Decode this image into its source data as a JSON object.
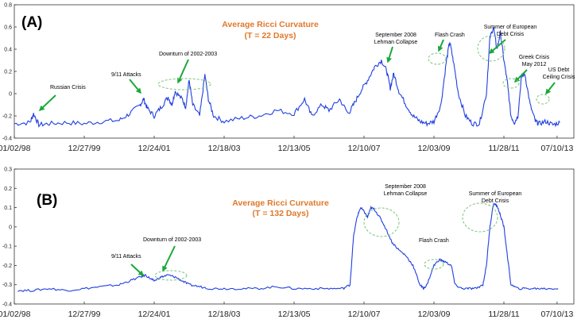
{
  "chart_data": [
    {
      "type": "line",
      "panel_label": "(A)",
      "title_line1": "Average Ricci Curvature",
      "title_line2": "(T = 22 Days)",
      "ylim": [
        -0.4,
        0.8
      ],
      "yticks": [
        -0.4,
        -0.2,
        0,
        0.2,
        0.4,
        0.6,
        0.8
      ],
      "ytick_labels": [
        "-0.4",
        "-0.2",
        "0",
        "0.2",
        "0.4",
        "0.6",
        "0.8"
      ],
      "x_range": [
        1998.0,
        2014.0
      ],
      "x_tick_labels": [
        "01/02/98",
        "12/27/99",
        "12/24/01",
        "12/18/03",
        "12/13/05",
        "12/10/07",
        "12/03/09",
        "11/28/11",
        "07/10/13"
      ],
      "x_tick_positions": [
        1998.0,
        2000.0,
        2002.0,
        2004.0,
        2006.0,
        2008.0,
        2010.0,
        2012.0,
        2013.52
      ],
      "line_color": "#1f3fe0",
      "series": {
        "name": "Average Ricci Curvature (T = 22 Days)",
        "x": [
          1998.0,
          1998.45,
          1998.55,
          1998.7,
          1999.0,
          1999.5,
          2000.0,
          2000.5,
          2001.0,
          2001.3,
          2001.6,
          2001.7,
          2001.8,
          2002.0,
          2002.2,
          2002.4,
          2002.5,
          2002.6,
          2002.8,
          2002.9,
          2003.0,
          2003.1,
          2003.3,
          2003.45,
          2003.55,
          2003.7,
          2004.0,
          2004.5,
          2005.0,
          2005.5,
          2006.0,
          2006.3,
          2006.5,
          2006.8,
          2007.0,
          2007.3,
          2007.55,
          2007.7,
          2007.9,
          2008.1,
          2008.3,
          2008.5,
          2008.65,
          2008.75,
          2008.85,
          2009.0,
          2009.2,
          2009.4,
          2009.6,
          2009.8,
          2010.0,
          2010.2,
          2010.35,
          2010.45,
          2010.55,
          2010.7,
          2010.9,
          2011.1,
          2011.3,
          2011.5,
          2011.6,
          2011.7,
          2011.8,
          2011.9,
          2012.0,
          2012.1,
          2012.2,
          2012.3,
          2012.4,
          2012.5,
          2012.6,
          2012.75,
          2012.9,
          2013.0,
          2013.2,
          2013.4,
          2013.6
        ],
        "values": [
          -0.27,
          -0.26,
          -0.18,
          -0.28,
          -0.27,
          -0.26,
          -0.27,
          -0.25,
          -0.24,
          -0.18,
          -0.1,
          -0.05,
          -0.13,
          -0.2,
          -0.12,
          -0.03,
          -0.1,
          0.02,
          -0.05,
          -0.12,
          0.12,
          -0.1,
          -0.2,
          0.17,
          -0.05,
          -0.2,
          -0.25,
          -0.22,
          -0.2,
          -0.15,
          -0.18,
          -0.05,
          -0.2,
          -0.1,
          -0.15,
          -0.05,
          -0.18,
          -0.1,
          0.02,
          0.12,
          0.24,
          0.3,
          0.2,
          0.05,
          0.18,
          0.02,
          -0.1,
          -0.2,
          -0.25,
          -0.27,
          -0.25,
          -0.1,
          0.28,
          0.47,
          0.3,
          0.0,
          -0.2,
          -0.27,
          -0.27,
          0.0,
          0.5,
          0.6,
          0.4,
          0.55,
          0.3,
          0.1,
          -0.2,
          -0.26,
          -0.2,
          0.15,
          0.18,
          -0.1,
          -0.25,
          -0.27,
          -0.25,
          -0.28,
          -0.26
        ]
      },
      "annotations": [
        {
          "text": "Russian Crisis"
        },
        {
          "text": "9/11 Attacks"
        },
        {
          "text": "Downturn of 2002-2003"
        },
        {
          "text": "September 2008"
        },
        {
          "text": "Lehman Collapse"
        },
        {
          "text": "Flash Crash"
        },
        {
          "text": "Summer of European"
        },
        {
          "text": "Debt Crisis"
        },
        {
          "text": "Greek Crisis"
        },
        {
          "text": "May 2012"
        },
        {
          "text": "US Debt"
        },
        {
          "text": "Ceiling Crisis"
        }
      ]
    },
    {
      "type": "line",
      "panel_label": "(B)",
      "title_line1": "Average Ricci Curvature",
      "title_line2": "(T = 132 Days)",
      "ylim": [
        -0.4,
        0.3
      ],
      "yticks": [
        -0.4,
        -0.3,
        -0.2,
        -0.1,
        0,
        0.1,
        0.2,
        0.3
      ],
      "ytick_labels": [
        "-0.4",
        "-0.3",
        "-0.2",
        "-0.1",
        "0",
        "0.1",
        "0.2",
        "0.3"
      ],
      "x_range": [
        1998.0,
        2014.0
      ],
      "x_tick_labels": [
        "01/02/98",
        "12/27/99",
        "12/24/01",
        "12/18/03",
        "12/13/05",
        "12/10/07",
        "12/03/09",
        "11/28/11",
        "07/10/13"
      ],
      "x_tick_positions": [
        1998.0,
        2000.0,
        2002.0,
        2004.0,
        2006.0,
        2008.0,
        2010.0,
        2012.0,
        2013.52
      ],
      "line_color": "#1f3fe0",
      "series": {
        "name": "Average Ricci Curvature (T = 132 Days)",
        "x": [
          1998.1,
          1998.5,
          1999.0,
          1999.5,
          2000.0,
          2000.5,
          2001.0,
          2001.3,
          2001.6,
          2001.75,
          2001.9,
          2002.0,
          2002.2,
          2002.4,
          2002.6,
          2002.8,
          2003.0,
          2003.3,
          2003.6,
          2004.0,
          2004.5,
          2005.0,
          2005.5,
          2006.0,
          2006.5,
          2007.0,
          2007.4,
          2007.6,
          2007.7,
          2007.8,
          2007.9,
          2008.0,
          2008.1,
          2008.2,
          2008.3,
          2008.45,
          2008.6,
          2008.8,
          2009.0,
          2009.2,
          2009.4,
          2009.6,
          2009.7,
          2009.8,
          2010.0,
          2010.15,
          2010.3,
          2010.5,
          2010.6,
          2010.8,
          2011.0,
          2011.2,
          2011.4,
          2011.5,
          2011.6,
          2011.7,
          2011.8,
          2011.9,
          2012.0,
          2012.1,
          2012.2,
          2012.4,
          2012.7,
          2013.0,
          2013.3,
          2013.55
        ],
        "values": [
          -0.33,
          -0.33,
          -0.32,
          -0.33,
          -0.32,
          -0.31,
          -0.3,
          -0.28,
          -0.26,
          -0.25,
          -0.27,
          -0.28,
          -0.26,
          -0.25,
          -0.26,
          -0.28,
          -0.3,
          -0.31,
          -0.32,
          -0.32,
          -0.32,
          -0.32,
          -0.31,
          -0.32,
          -0.32,
          -0.32,
          -0.32,
          -0.3,
          -0.05,
          0.05,
          0.1,
          0.08,
          0.05,
          0.1,
          0.09,
          0.05,
          0.0,
          -0.08,
          -0.12,
          -0.15,
          -0.2,
          -0.3,
          -0.32,
          -0.3,
          -0.2,
          -0.17,
          -0.18,
          -0.2,
          -0.3,
          -0.32,
          -0.32,
          -0.32,
          -0.3,
          -0.2,
          0.0,
          0.12,
          0.11,
          0.06,
          0.0,
          -0.15,
          -0.3,
          -0.32,
          -0.32,
          -0.32,
          -0.32,
          -0.32
        ]
      },
      "annotations": [
        {
          "text": "9/11 Attacks"
        },
        {
          "text": "Downturn of 2002-2003"
        },
        {
          "text": "September 2008"
        },
        {
          "text": "Lehman Collapse"
        },
        {
          "text": "Flash Crash"
        },
        {
          "text": "Summer of European"
        },
        {
          "text": "Debt Crisis"
        }
      ]
    }
  ]
}
